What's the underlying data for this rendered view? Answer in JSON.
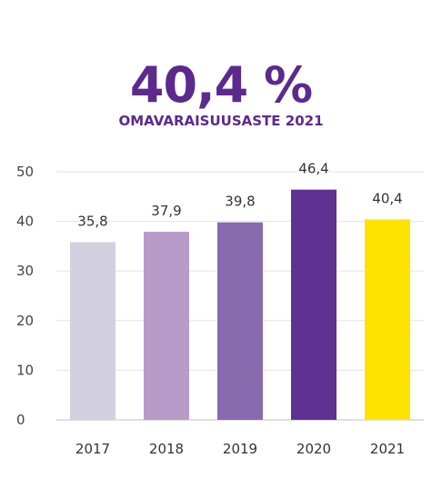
{
  "headline": {
    "value": "40,4 %",
    "subtitle": "OMAVARAISUUSASTE 2021"
  },
  "chart_data": {
    "type": "bar",
    "categories": [
      "2017",
      "2018",
      "2019",
      "2020",
      "2021"
    ],
    "values": [
      35.8,
      37.9,
      39.8,
      46.4,
      40.4
    ],
    "data_labels": [
      "35,8",
      "37,9",
      "39,8",
      "46,4",
      "40,4"
    ],
    "bar_colors": [
      "#d3d0df",
      "#b99bc9",
      "#8a6aae",
      "#5e3192",
      "#ffe300"
    ],
    "yticks": [
      "0",
      "10",
      "20",
      "30",
      "40",
      "50"
    ],
    "ylim": [
      0,
      50
    ],
    "grid": true,
    "title": "",
    "xlabel": "",
    "ylabel": ""
  }
}
